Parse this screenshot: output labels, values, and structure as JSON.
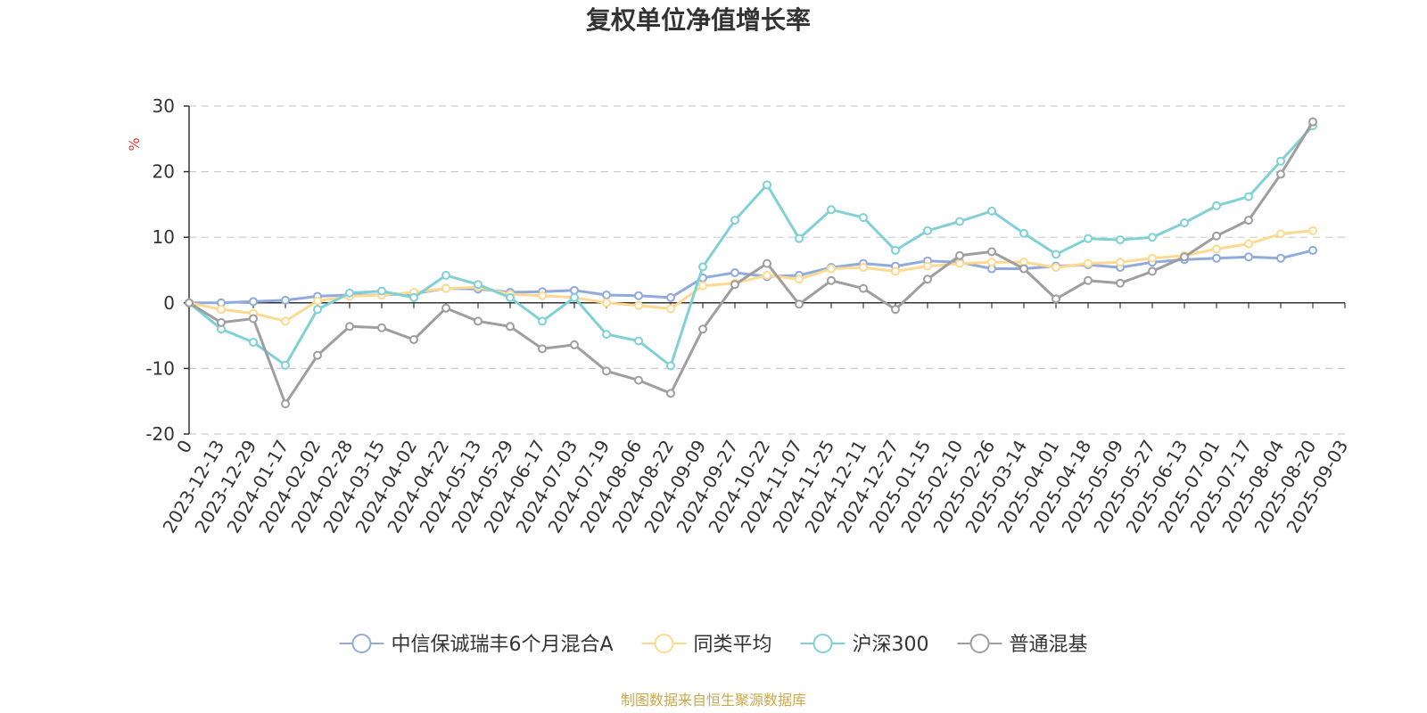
{
  "chart_data": {
    "type": "line",
    "title": "复权单位净值增长率",
    "y_unit": "%",
    "ylim": [
      -20,
      30
    ],
    "y_ticks": [
      -20,
      -10,
      0,
      10,
      20,
      30
    ],
    "grid": true,
    "legend_position": "bottom",
    "x_first_label": "0",
    "x": [
      "2023-12-13",
      "2023-12-29",
      "2024-01-17",
      "2024-02-02",
      "2024-02-28",
      "2024-03-15",
      "2024-04-02",
      "2024-04-22",
      "2024-05-13",
      "2024-05-29",
      "2024-06-17",
      "2024-07-03",
      "2024-07-19",
      "2024-08-06",
      "2024-08-22",
      "2024-09-09",
      "2024-09-27",
      "2024-10-22",
      "2024-11-07",
      "2024-11-25",
      "2024-12-11",
      "2024-12-27",
      "2025-01-15",
      "2025-02-10",
      "2025-02-26",
      "2025-03-14",
      "2025-04-01",
      "2025-04-18",
      "2025-05-09",
      "2025-05-27",
      "2025-06-13",
      "2025-07-01",
      "2025-07-17",
      "2025-08-04",
      "2025-08-20",
      "2025-09-03"
    ],
    "series": [
      {
        "name": "中信保诚瑞丰6个月混合A",
        "color": "#8faadc",
        "points": [
          [
            0,
            0
          ],
          [
            1,
            0
          ],
          [
            2,
            0.2
          ],
          [
            3,
            0.4
          ],
          [
            4,
            1
          ],
          [
            5,
            1.2
          ],
          [
            6,
            1.2
          ],
          [
            7,
            1.4
          ],
          [
            8,
            2.2
          ],
          [
            9,
            2.1
          ],
          [
            10,
            1.6
          ],
          [
            11,
            1.7
          ],
          [
            12,
            1.9
          ],
          [
            13,
            1.2
          ],
          [
            14,
            1.1
          ],
          [
            15,
            0.8
          ],
          [
            16,
            3.8
          ],
          [
            17,
            4.6
          ],
          [
            18,
            4
          ],
          [
            19,
            4.2
          ],
          [
            20,
            5.4
          ],
          [
            21,
            6
          ],
          [
            22,
            5.6
          ],
          [
            23,
            6.4
          ],
          [
            24,
            6.2
          ],
          [
            25,
            5.2
          ],
          [
            26,
            5.2
          ],
          [
            27,
            5.6
          ],
          [
            28,
            5.8
          ],
          [
            29,
            5.4
          ],
          [
            30,
            6.2
          ],
          [
            31,
            6.6
          ],
          [
            32,
            6.8
          ],
          [
            33,
            7
          ],
          [
            34,
            6.8
          ],
          [
            35,
            8
          ]
        ]
      },
      {
        "name": "同类平均",
        "color": "#ffd990",
        "points": [
          [
            0,
            0
          ],
          [
            1,
            -1
          ],
          [
            2,
            -1.6
          ],
          [
            3,
            -2.8
          ],
          [
            4,
            0.3
          ],
          [
            5,
            1
          ],
          [
            6,
            1.2
          ],
          [
            7,
            1.6
          ],
          [
            8,
            2.2
          ],
          [
            9,
            2.4
          ],
          [
            10,
            1.3
          ],
          [
            11,
            1.1
          ],
          [
            12,
            0.8
          ],
          [
            13,
            0
          ],
          [
            14,
            -0.4
          ],
          [
            15,
            -0.9
          ],
          [
            16,
            2.6
          ],
          [
            17,
            3
          ],
          [
            18,
            4.2
          ],
          [
            19,
            3.6
          ],
          [
            20,
            5.2
          ],
          [
            21,
            5.4
          ],
          [
            22,
            4.8
          ],
          [
            23,
            5.6
          ],
          [
            24,
            6
          ],
          [
            25,
            6.2
          ],
          [
            26,
            6.2
          ],
          [
            27,
            5.4
          ],
          [
            28,
            6
          ],
          [
            29,
            6.2
          ],
          [
            30,
            6.8
          ],
          [
            31,
            7.2
          ],
          [
            32,
            8.2
          ],
          [
            33,
            9
          ],
          [
            34,
            10.5
          ],
          [
            35,
            11
          ]
        ]
      },
      {
        "name": "沪深300",
        "color": "#7fd1d6",
        "points": [
          [
            0,
            0
          ],
          [
            1,
            -4
          ],
          [
            2,
            -6
          ],
          [
            3,
            -9.5
          ],
          [
            4,
            -1
          ],
          [
            5,
            1.5
          ],
          [
            6,
            1.8
          ],
          [
            7,
            0.8
          ],
          [
            8,
            4.2
          ],
          [
            9,
            2.8
          ],
          [
            10,
            0.8
          ],
          [
            11,
            -2.8
          ],
          [
            12,
            0.8
          ],
          [
            13,
            -4.8
          ],
          [
            14,
            -5.8
          ],
          [
            15,
            -9.6
          ],
          [
            16,
            5.5
          ],
          [
            17,
            12.6
          ],
          [
            18,
            18
          ],
          [
            19,
            9.8
          ],
          [
            20,
            14.2
          ],
          [
            21,
            13
          ],
          [
            22,
            8
          ],
          [
            23,
            11
          ],
          [
            24,
            12.4
          ],
          [
            25,
            14
          ],
          [
            26,
            10.6
          ],
          [
            27,
            7.4
          ],
          [
            28,
            9.8
          ],
          [
            29,
            9.6
          ],
          [
            30,
            10
          ],
          [
            31,
            12.2
          ],
          [
            32,
            14.8
          ],
          [
            33,
            16.2
          ],
          [
            34,
            21.6
          ],
          [
            35,
            27
          ]
        ]
      },
      {
        "name": "普通混基",
        "color": "#9e9e9e",
        "points": [
          [
            0,
            0
          ],
          [
            1,
            -3
          ],
          [
            2,
            -2.4
          ],
          [
            3,
            -15.4
          ],
          [
            4,
            -8
          ],
          [
            5,
            -3.6
          ],
          [
            6,
            -3.8
          ],
          [
            7,
            -5.6
          ],
          [
            8,
            -0.8
          ],
          [
            9,
            -2.8
          ],
          [
            10,
            -3.6
          ],
          [
            11,
            -7
          ],
          [
            12,
            -6.4
          ],
          [
            13,
            -10.4
          ],
          [
            14,
            -11.8
          ],
          [
            15,
            -13.8
          ],
          [
            16,
            -4
          ],
          [
            17,
            2.8
          ],
          [
            18,
            6
          ],
          [
            19,
            -0.2
          ],
          [
            20,
            3.4
          ],
          [
            21,
            2.2
          ],
          [
            22,
            -1
          ],
          [
            23,
            3.6
          ],
          [
            24,
            7.2
          ],
          [
            25,
            7.8
          ],
          [
            26,
            5.2
          ],
          [
            27,
            0.6
          ],
          [
            28,
            3.4
          ],
          [
            29,
            3
          ],
          [
            30,
            4.8
          ],
          [
            31,
            7
          ],
          [
            32,
            10.2
          ],
          [
            33,
            12.6
          ],
          [
            34,
            19.6
          ],
          [
            35,
            27.6
          ]
        ]
      }
    ]
  },
  "source_note": "制图数据来自恒生聚源数据库",
  "colors": {
    "axis": "#333333",
    "grid": "#cccccc",
    "y_unit": "#e53935",
    "source_note": "#c9a84c"
  }
}
